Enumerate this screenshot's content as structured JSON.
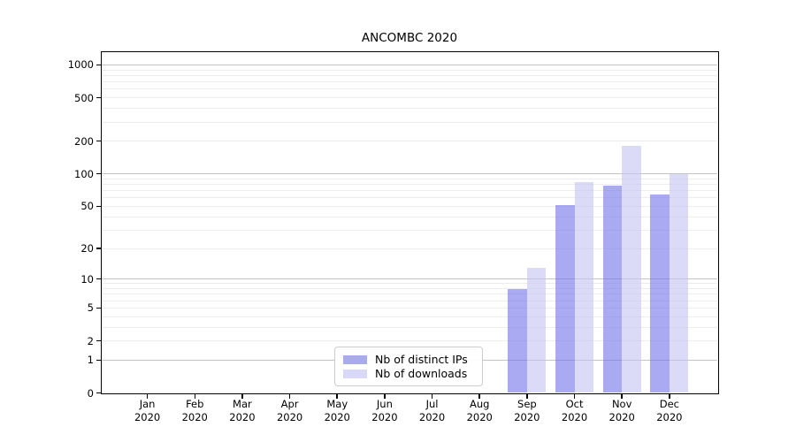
{
  "figure": {
    "background": "#ffffff"
  },
  "chart_data": {
    "type": "bar",
    "title": "ANCOMBC 2020",
    "xlabel": "",
    "ylabel": "",
    "scale": "log1p",
    "grid": true,
    "legend_position": "lower center",
    "categories": [
      {
        "month": "Jan",
        "year": "2020"
      },
      {
        "month": "Feb",
        "year": "2020"
      },
      {
        "month": "Mar",
        "year": "2020"
      },
      {
        "month": "Apr",
        "year": "2020"
      },
      {
        "month": "May",
        "year": "2020"
      },
      {
        "month": "Jun",
        "year": "2020"
      },
      {
        "month": "Jul",
        "year": "2020"
      },
      {
        "month": "Aug",
        "year": "2020"
      },
      {
        "month": "Sep",
        "year": "2020"
      },
      {
        "month": "Oct",
        "year": "2020"
      },
      {
        "month": "Nov",
        "year": "2020"
      },
      {
        "month": "Dec",
        "year": "2020"
      }
    ],
    "series": [
      {
        "name": "Nb of distinct IPs",
        "fill": "rgba(113,113,235,0.6)",
        "legend_color": "#aaaaee",
        "values": [
          0,
          0,
          0,
          0,
          0,
          0,
          0,
          0,
          8,
          51,
          78,
          65
        ]
      },
      {
        "name": "Nb of downloads",
        "fill": "rgba(195,195,243,0.6)",
        "legend_color": "#d9d9f7",
        "values": [
          0,
          0,
          0,
          0,
          0,
          0,
          0,
          0,
          13,
          84,
          180,
          100
        ]
      }
    ],
    "yticks": [
      0,
      1,
      2,
      5,
      10,
      20,
      50,
      100,
      200,
      500,
      1000
    ],
    "ylim": [
      0,
      1276
    ],
    "grid_major_color": "#c4c4c4",
    "grid_minor_color": "#ededed"
  }
}
